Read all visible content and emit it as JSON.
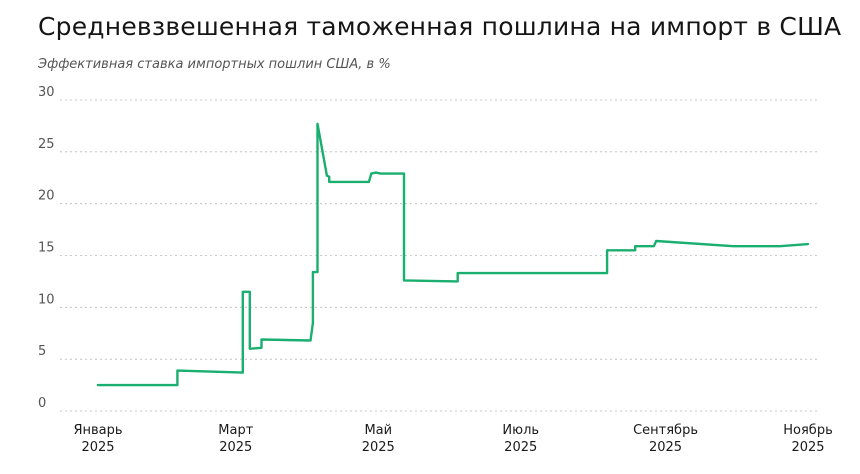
{
  "header": {
    "title": "Средневзвешенная таможенная пошлина на импорт в США",
    "subtitle": "Эффективная ставка импортных пошлин США, в %"
  },
  "chart_data": {
    "type": "line",
    "title": "Средневзвешенная таможенная пошлина на импорт в США",
    "subtitle": "Эффективная ставка импортных пошлин США, в %",
    "xlabel": "",
    "ylabel": "",
    "ylim": [
      0,
      30
    ],
    "xlim": [
      "2025-01-01",
      "2025-11-01"
    ],
    "y_ticks": [
      0,
      5,
      10,
      15,
      20,
      25,
      30
    ],
    "x_ticks": [
      {
        "date": "2025-01-01",
        "label": [
          "Январь",
          "2025"
        ]
      },
      {
        "date": "2025-03-01",
        "label": [
          "Март",
          "2025"
        ]
      },
      {
        "date": "2025-05-01",
        "label": [
          "Май",
          "2025"
        ]
      },
      {
        "date": "2025-07-01",
        "label": [
          "Июль",
          "2025"
        ]
      },
      {
        "date": "2025-09-01",
        "label": [
          "Сентябрь",
          "2025"
        ]
      },
      {
        "date": "2025-11-01",
        "label": [
          "Ноябрь",
          "2025"
        ]
      }
    ],
    "grid": true,
    "color": "#1aae6f",
    "series": [
      {
        "x": [
          "2025-01-01",
          "2025-02-04",
          "2025-02-04",
          "2025-03-04",
          "2025-03-04",
          "2025-03-07",
          "2025-03-07",
          "2025-03-12",
          "2025-03-12",
          "2025-04-02",
          "2025-04-03",
          "2025-04-03",
          "2025-04-05",
          "2025-04-05",
          "2025-04-09",
          "2025-04-09",
          "2025-04-10",
          "2025-04-10",
          "2025-04-27",
          "2025-04-28",
          "2025-04-30",
          "2025-05-02",
          "2025-05-12",
          "2025-05-12",
          "2025-06-04",
          "2025-06-04",
          "2025-08-07",
          "2025-08-07",
          "2025-08-19",
          "2025-08-19",
          "2025-08-27",
          "2025-08-28",
          "2025-09-30",
          "2025-10-20",
          "2025-11-01"
        ],
        "y": [
          2.5,
          2.5,
          3.9,
          3.7,
          11.5,
          11.5,
          6.0,
          6.1,
          6.9,
          6.8,
          8.5,
          13.4,
          13.4,
          27.7,
          22.7,
          22.7,
          22.6,
          22.1,
          22.1,
          22.9,
          23.0,
          22.9,
          22.9,
          12.6,
          12.5,
          13.3,
          13.3,
          15.5,
          15.5,
          15.9,
          15.9,
          16.4,
          15.9,
          15.9,
          16.1
        ]
      }
    ]
  }
}
